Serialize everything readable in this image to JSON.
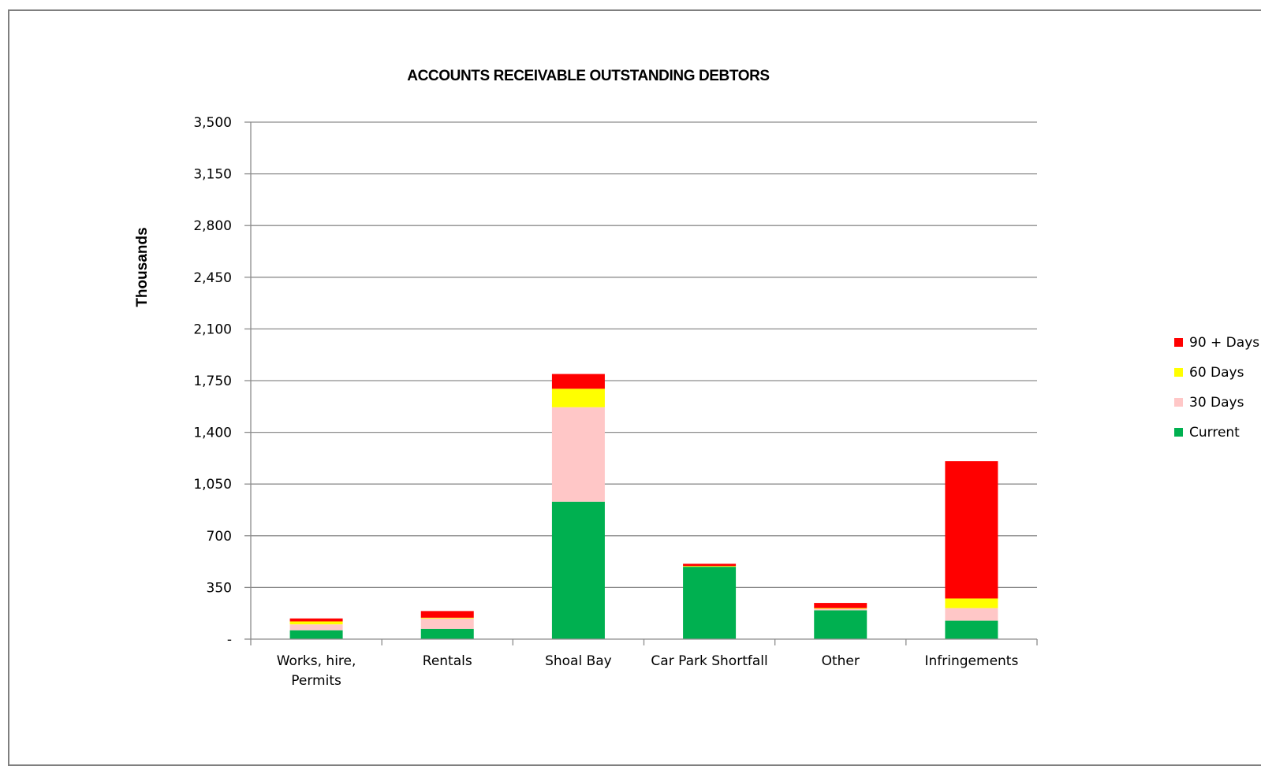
{
  "chart_data": {
    "type": "bar",
    "stacked": true,
    "title": "ACCOUNTS RECEIVABLE OUTSTANDING DEBTORS",
    "xlabel": "",
    "ylabel": "Thousands",
    "ylim": [
      0,
      3500
    ],
    "yticks": [
      0,
      350,
      700,
      1050,
      1400,
      1750,
      2100,
      2450,
      2800,
      3150,
      3500
    ],
    "ytick_labels": [
      "-",
      "350",
      "700",
      "1,050",
      "1,400",
      "1,750",
      "2,100",
      "2,450",
      "2,800",
      "3,150",
      "3,500"
    ],
    "grid": true,
    "legend_position": "right",
    "categories": [
      "Works, hire, Permits",
      "Rentals",
      "Shoal Bay",
      "Car Park Shortfall",
      "Other",
      "Infringements"
    ],
    "category_lines": [
      [
        "Works, hire,",
        "Permits"
      ],
      [
        "Rentals"
      ],
      [
        "Shoal Bay"
      ],
      [
        "Car Park Shortfall"
      ],
      [
        "Other"
      ],
      [
        "Infringements"
      ]
    ],
    "series": [
      {
        "name": "Current",
        "color": "#00b050",
        "values": [
          60,
          70,
          930,
          490,
          195,
          125
        ]
      },
      {
        "name": "30 Days",
        "color": "#ffc7c7",
        "values": [
          40,
          70,
          640,
          0,
          10,
          85
        ]
      },
      {
        "name": "60 Days",
        "color": "#ffff00",
        "values": [
          20,
          5,
          125,
          5,
          5,
          65
        ]
      },
      {
        "name": "90 + Days",
        "color": "#ff0000",
        "values": [
          20,
          45,
          100,
          15,
          35,
          930
        ]
      }
    ],
    "legend_order": [
      "90 + Days",
      "60 Days",
      "30 Days",
      "Current"
    ]
  }
}
